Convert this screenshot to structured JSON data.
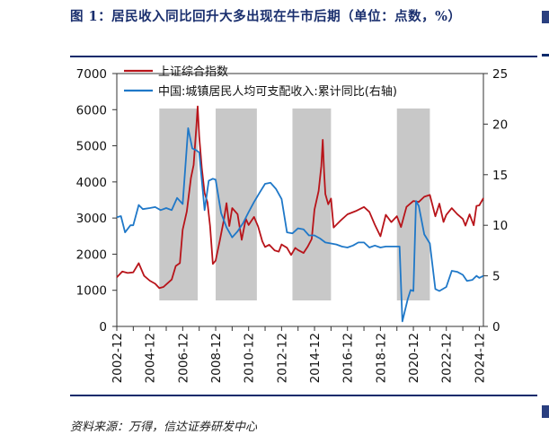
{
  "title": "图 1：居民收入同比回升大多出现在牛市后期（单位：点数，%）",
  "source": "资料来源：万得，信达证券研发中心",
  "chart_data": {
    "type": "line",
    "x_start": 2002.92,
    "x_end": 2025.17,
    "xlabels": [
      "2002-12",
      "2004-12",
      "2006-12",
      "2008-12",
      "2010-12",
      "2012-12",
      "2014-12",
      "2016-12",
      "2018-12",
      "2020-12",
      "2022-12",
      "2024-12"
    ],
    "y_left": {
      "min": 0,
      "max": 7000,
      "ticks": [
        "0",
        "1000",
        "2000",
        "3000",
        "4000",
        "5000",
        "6000",
        "7000"
      ]
    },
    "y_right": {
      "min": 0,
      "max": 25,
      "ticks": [
        "0",
        "5",
        "10",
        "15",
        "20",
        "25"
      ]
    },
    "shaded_periods": [
      [
        2005.5,
        2007.83
      ],
      [
        2008.92,
        2011.42
      ],
      [
        2013.58,
        2015.92
      ],
      [
        2019.92,
        2021.92
      ]
    ],
    "series": [
      {
        "name": "上证综合指数",
        "axis": "left",
        "color": "#b8141a",
        "points": [
          [
            2002.92,
            1357
          ],
          [
            2003.25,
            1520
          ],
          [
            2003.58,
            1480
          ],
          [
            2003.92,
            1497
          ],
          [
            2004.25,
            1750
          ],
          [
            2004.58,
            1399
          ],
          [
            2004.92,
            1266
          ],
          [
            2005.25,
            1181
          ],
          [
            2005.5,
            1060
          ],
          [
            2005.75,
            1093
          ],
          [
            2005.92,
            1161
          ],
          [
            2006.25,
            1299
          ],
          [
            2006.5,
            1672
          ],
          [
            2006.75,
            1752
          ],
          [
            2006.92,
            2675
          ],
          [
            2007.17,
            3183
          ],
          [
            2007.42,
            4109
          ],
          [
            2007.58,
            4471
          ],
          [
            2007.75,
            5552
          ],
          [
            2007.83,
            6092
          ],
          [
            2007.92,
            5262
          ],
          [
            2008.08,
            4383
          ],
          [
            2008.25,
            3693
          ],
          [
            2008.42,
            3433
          ],
          [
            2008.58,
            2775
          ],
          [
            2008.75,
            1729
          ],
          [
            2008.92,
            1821
          ],
          [
            2009.17,
            2374
          ],
          [
            2009.42,
            2959
          ],
          [
            2009.58,
            3412
          ],
          [
            2009.75,
            2780
          ],
          [
            2009.92,
            3277
          ],
          [
            2010.25,
            3109
          ],
          [
            2010.5,
            2398
          ],
          [
            2010.75,
            2979
          ],
          [
            2010.92,
            2808
          ],
          [
            2011.25,
            3030
          ],
          [
            2011.5,
            2762
          ],
          [
            2011.75,
            2359
          ],
          [
            2011.92,
            2199
          ],
          [
            2012.17,
            2262
          ],
          [
            2012.5,
            2103
          ],
          [
            2012.75,
            2069
          ],
          [
            2012.92,
            2269
          ],
          [
            2013.25,
            2177
          ],
          [
            2013.5,
            1979
          ],
          [
            2013.75,
            2174
          ],
          [
            2013.92,
            2116
          ],
          [
            2014.25,
            2033
          ],
          [
            2014.5,
            2201
          ],
          [
            2014.75,
            2420
          ],
          [
            2014.92,
            3235
          ],
          [
            2015.17,
            3748
          ],
          [
            2015.33,
            4441
          ],
          [
            2015.42,
            5166
          ],
          [
            2015.5,
            4277
          ],
          [
            2015.58,
            3664
          ],
          [
            2015.75,
            3382
          ],
          [
            2015.92,
            3539
          ],
          [
            2016.08,
            2737
          ],
          [
            2016.5,
            2930
          ],
          [
            2016.92,
            3104
          ],
          [
            2017.42,
            3192
          ],
          [
            2017.92,
            3307
          ],
          [
            2018.25,
            3169
          ],
          [
            2018.58,
            2816
          ],
          [
            2018.92,
            2494
          ],
          [
            2019.25,
            3091
          ],
          [
            2019.58,
            2886
          ],
          [
            2019.92,
            3050
          ],
          [
            2020.17,
            2750
          ],
          [
            2020.5,
            3310
          ],
          [
            2020.92,
            3473
          ],
          [
            2021.25,
            3445
          ],
          [
            2021.58,
            3590
          ],
          [
            2021.92,
            3640
          ],
          [
            2022.25,
            3047
          ],
          [
            2022.5,
            3398
          ],
          [
            2022.75,
            2893
          ],
          [
            2022.92,
            3089
          ],
          [
            2023.25,
            3273
          ],
          [
            2023.58,
            3110
          ],
          [
            2023.92,
            2975
          ],
          [
            2024.08,
            2789
          ],
          [
            2024.33,
            3104
          ],
          [
            2024.58,
            2800
          ],
          [
            2024.75,
            3336
          ],
          [
            2024.92,
            3352
          ],
          [
            2025.17,
            3550
          ]
        ]
      },
      {
        "name": "中国:城镇居民人均可支配收入:累计同比(右轴)",
        "axis": "right",
        "color": "#1f78c8",
        "points": [
          [
            2002.92,
            10.8
          ],
          [
            2003.17,
            10.9
          ],
          [
            2003.42,
            9.3
          ],
          [
            2003.75,
            10.0
          ],
          [
            2003.92,
            10.0
          ],
          [
            2004.25,
            12.0
          ],
          [
            2004.5,
            11.6
          ],
          [
            2004.92,
            11.7
          ],
          [
            2005.25,
            11.8
          ],
          [
            2005.58,
            11.5
          ],
          [
            2005.92,
            11.7
          ],
          [
            2006.25,
            11.5
          ],
          [
            2006.58,
            12.7
          ],
          [
            2006.92,
            12.1
          ],
          [
            2007.25,
            19.6
          ],
          [
            2007.5,
            17.6
          ],
          [
            2007.75,
            17.4
          ],
          [
            2007.92,
            17.2
          ],
          [
            2008.25,
            11.5
          ],
          [
            2008.5,
            14.4
          ],
          [
            2008.75,
            14.6
          ],
          [
            2008.92,
            14.5
          ],
          [
            2009.25,
            11.2
          ],
          [
            2009.58,
            9.8
          ],
          [
            2009.92,
            8.8
          ],
          [
            2010.25,
            9.4
          ],
          [
            2010.58,
            10.2
          ],
          [
            2010.92,
            11.3
          ],
          [
            2011.25,
            12.3
          ],
          [
            2011.58,
            13.2
          ],
          [
            2011.92,
            14.1
          ],
          [
            2012.25,
            14.2
          ],
          [
            2012.58,
            13.6
          ],
          [
            2012.92,
            12.6
          ],
          [
            2013.25,
            9.3
          ],
          [
            2013.58,
            9.2
          ],
          [
            2013.92,
            9.7
          ],
          [
            2014.25,
            9.6
          ],
          [
            2014.58,
            9.0
          ],
          [
            2014.92,
            9.0
          ],
          [
            2015.25,
            8.7
          ],
          [
            2015.58,
            8.3
          ],
          [
            2015.92,
            8.2
          ],
          [
            2016.25,
            8.1
          ],
          [
            2016.58,
            7.9
          ],
          [
            2016.92,
            7.8
          ],
          [
            2017.25,
            8.0
          ],
          [
            2017.58,
            8.3
          ],
          [
            2017.92,
            8.3
          ],
          [
            2018.25,
            7.8
          ],
          [
            2018.58,
            8.0
          ],
          [
            2018.92,
            7.8
          ],
          [
            2019.25,
            7.9
          ],
          [
            2019.58,
            7.9
          ],
          [
            2019.92,
            7.9
          ],
          [
            2020.08,
            7.9
          ],
          [
            2020.25,
            0.5
          ],
          [
            2020.58,
            2.7
          ],
          [
            2020.75,
            3.6
          ],
          [
            2020.92,
            3.5
          ],
          [
            2021.08,
            12.4
          ],
          [
            2021.25,
            11.9
          ],
          [
            2021.58,
            9.1
          ],
          [
            2021.92,
            8.2
          ],
          [
            2022.25,
            3.7
          ],
          [
            2022.5,
            3.5
          ],
          [
            2022.92,
            3.9
          ],
          [
            2023.25,
            5.5
          ],
          [
            2023.58,
            5.4
          ],
          [
            2023.92,
            5.1
          ],
          [
            2024.17,
            4.5
          ],
          [
            2024.5,
            4.6
          ],
          [
            2024.75,
            5.0
          ],
          [
            2024.92,
            4.8
          ],
          [
            2025.17,
            5.0
          ]
        ]
      }
    ]
  }
}
